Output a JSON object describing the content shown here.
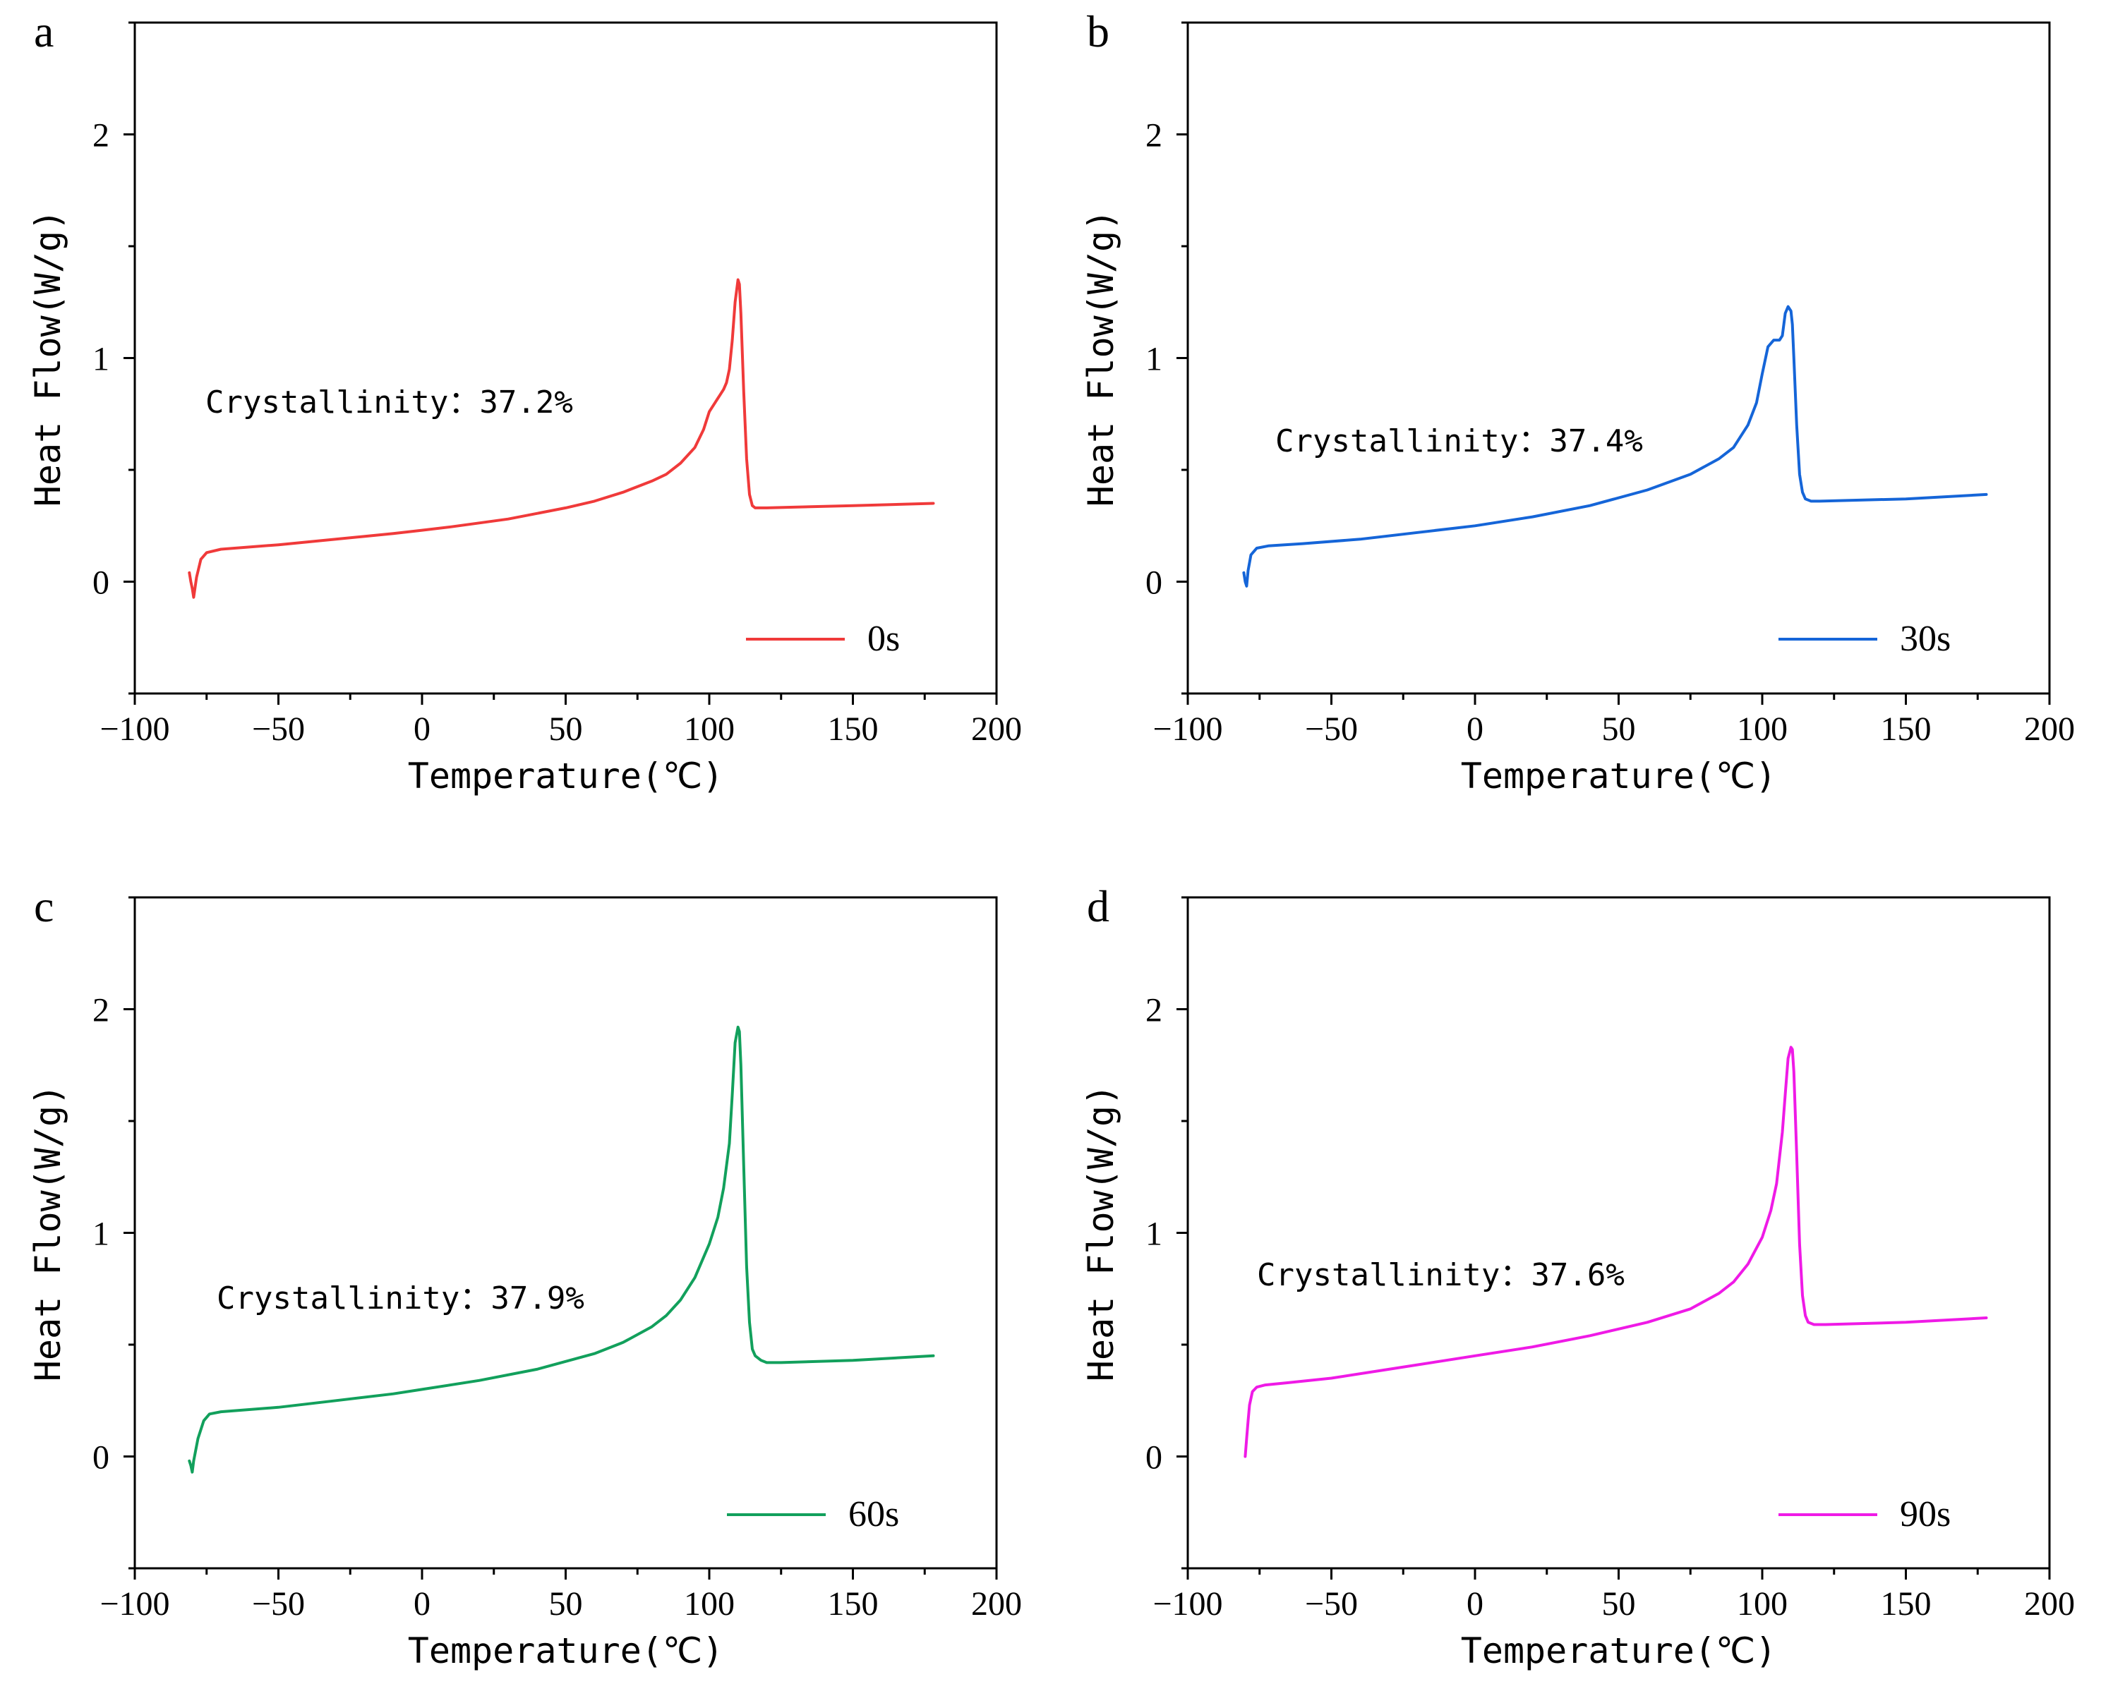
{
  "chart_data": [
    {
      "panel_label": "a",
      "type": "line",
      "xlabel": "Temperature(℃)",
      "ylabel": "Heat Flow(W/g)",
      "xlim": [
        -100,
        200
      ],
      "ylim": [
        -0.5,
        2.5
      ],
      "x_ticks": [
        -100,
        -50,
        0,
        50,
        100,
        150,
        200
      ],
      "y_ticks": [
        0,
        1,
        2
      ],
      "legend_position": "bottom-right",
      "annotation": "Crystallinity：37.2%",
      "series": [
        {
          "name": "0s",
          "color": "#f03a3a",
          "x": [
            -81,
            -80.5,
            -80,
            -79.5,
            -78.5,
            -77,
            -75,
            -70,
            -50,
            -30,
            -10,
            0,
            10,
            30,
            50,
            60,
            70,
            80,
            85,
            90,
            95,
            98,
            100,
            102,
            104,
            105,
            106,
            107,
            108,
            109,
            110,
            110.5,
            111,
            112,
            113,
            114,
            115,
            116,
            118,
            120,
            150,
            178
          ],
          "y": [
            0.04,
            0.0,
            -0.03,
            -0.07,
            0.02,
            0.1,
            0.13,
            0.145,
            0.165,
            0.19,
            0.215,
            0.23,
            0.245,
            0.28,
            0.33,
            0.36,
            0.4,
            0.45,
            0.48,
            0.53,
            0.6,
            0.68,
            0.76,
            0.8,
            0.84,
            0.86,
            0.89,
            0.95,
            1.08,
            1.25,
            1.35,
            1.33,
            1.2,
            0.85,
            0.55,
            0.39,
            0.34,
            0.33,
            0.33,
            0.33,
            0.34,
            0.35
          ]
        }
      ]
    },
    {
      "panel_label": "b",
      "type": "line",
      "xlabel": "Temperature(℃)",
      "ylabel": "Heat Flow(W/g)",
      "xlim": [
        -100,
        200
      ],
      "ylim": [
        -0.5,
        2.5
      ],
      "x_ticks": [
        -100,
        -50,
        0,
        50,
        100,
        150,
        200
      ],
      "y_ticks": [
        0,
        1,
        2
      ],
      "legend_position": "bottom-right",
      "annotation": "Crystallinity：37.4%",
      "series": [
        {
          "name": "30s",
          "color": "#1565d8",
          "x": [
            -80.5,
            -80,
            -79.5,
            -79,
            -78,
            -76,
            -72,
            -60,
            -40,
            -20,
            0,
            20,
            40,
            60,
            75,
            85,
            90,
            95,
            98,
            100,
            102,
            104,
            106,
            107,
            108,
            109,
            110,
            110.5,
            111,
            112,
            113,
            114,
            115,
            117,
            120,
            150,
            178
          ],
          "y": [
            0.04,
            0.0,
            -0.02,
            0.05,
            0.12,
            0.15,
            0.16,
            0.17,
            0.19,
            0.22,
            0.25,
            0.29,
            0.34,
            0.41,
            0.48,
            0.55,
            0.6,
            0.7,
            0.8,
            0.93,
            1.05,
            1.08,
            1.08,
            1.1,
            1.2,
            1.23,
            1.21,
            1.15,
            1.0,
            0.7,
            0.48,
            0.4,
            0.37,
            0.36,
            0.36,
            0.37,
            0.39
          ]
        }
      ]
    },
    {
      "panel_label": "c",
      "type": "line",
      "xlabel": "Temperature(℃)",
      "ylabel": "Heat Flow(W/g)",
      "xlim": [
        -100,
        200
      ],
      "ylim": [
        -0.5,
        2.5
      ],
      "x_ticks": [
        -100,
        -50,
        0,
        50,
        100,
        150,
        200
      ],
      "y_ticks": [
        0,
        1,
        2
      ],
      "legend_position": "bottom-right",
      "annotation": "Crystallinity：37.9%",
      "series": [
        {
          "name": "60s",
          "color": "#12a05c",
          "x": [
            -81,
            -80.5,
            -80,
            -79.5,
            -78,
            -76,
            -74,
            -70,
            -50,
            -30,
            -10,
            0,
            20,
            40,
            60,
            70,
            80,
            85,
            90,
            95,
            100,
            103,
            105,
            107,
            108,
            109,
            110,
            110.5,
            111,
            112,
            113,
            114,
            115,
            116,
            118,
            120,
            125,
            150,
            178
          ],
          "y": [
            -0.02,
            -0.04,
            -0.07,
            -0.02,
            0.08,
            0.16,
            0.19,
            0.2,
            0.22,
            0.25,
            0.28,
            0.3,
            0.34,
            0.39,
            0.46,
            0.51,
            0.58,
            0.63,
            0.7,
            0.8,
            0.95,
            1.07,
            1.2,
            1.4,
            1.62,
            1.85,
            1.92,
            1.9,
            1.75,
            1.3,
            0.85,
            0.6,
            0.48,
            0.45,
            0.43,
            0.42,
            0.42,
            0.43,
            0.45
          ]
        }
      ]
    },
    {
      "panel_label": "d",
      "type": "line",
      "xlabel": "Temperature(℃)",
      "ylabel": "Heat Flow(W/g)",
      "xlim": [
        -100,
        200
      ],
      "ylim": [
        -0.5,
        2.5
      ],
      "x_ticks": [
        -100,
        -50,
        0,
        50,
        100,
        150,
        200
      ],
      "y_ticks": [
        0,
        1,
        2
      ],
      "legend_position": "bottom-right",
      "annotation": "Crystallinity：37.6%",
      "series": [
        {
          "name": "90s",
          "color": "#ef1ae6",
          "x": [
            -80,
            -79.5,
            -79,
            -78.5,
            -77.5,
            -76,
            -73,
            -65,
            -50,
            -30,
            -10,
            0,
            20,
            40,
            60,
            75,
            85,
            90,
            95,
            100,
            103,
            105,
            107,
            108,
            109,
            110,
            110.5,
            111,
            112,
            113,
            114,
            115,
            116,
            118,
            122,
            150,
            178
          ],
          "y": [
            0.0,
            0.08,
            0.16,
            0.23,
            0.29,
            0.31,
            0.32,
            0.33,
            0.35,
            0.39,
            0.43,
            0.45,
            0.49,
            0.54,
            0.6,
            0.66,
            0.73,
            0.78,
            0.86,
            0.98,
            1.1,
            1.22,
            1.45,
            1.62,
            1.78,
            1.83,
            1.82,
            1.72,
            1.35,
            0.95,
            0.72,
            0.63,
            0.6,
            0.59,
            0.59,
            0.6,
            0.62
          ]
        }
      ]
    }
  ]
}
